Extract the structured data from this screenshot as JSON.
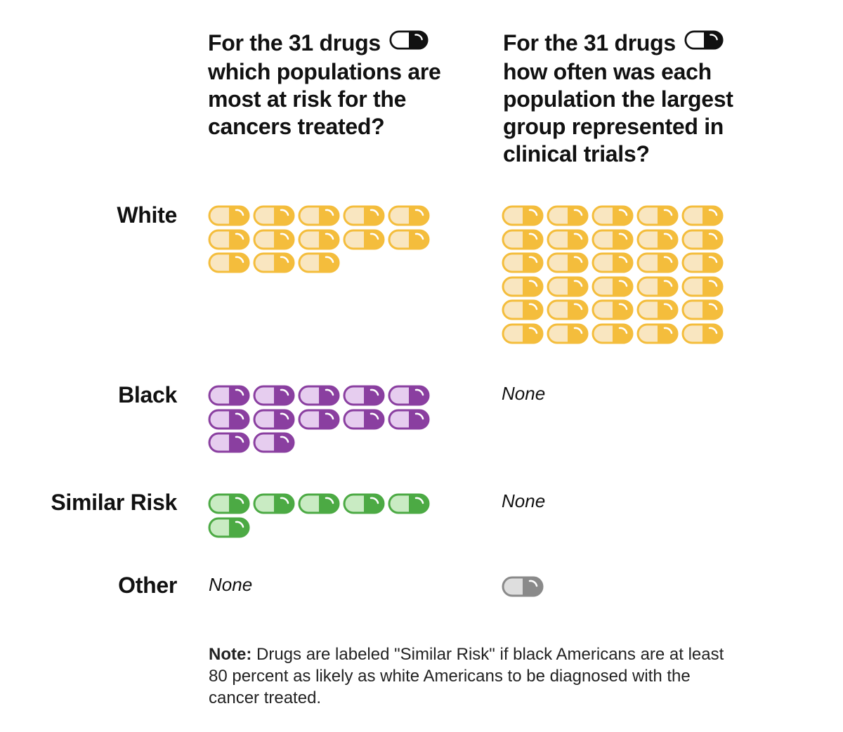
{
  "headings": {
    "left": [
      "For the 31 drugs",
      "which populations are",
      "most at risk for the",
      "cancers treated?"
    ],
    "right": [
      "For the 31 drugs",
      "how often was each",
      "population the largest",
      "group represented in",
      "clinical trials?"
    ]
  },
  "none_label": "None",
  "note": {
    "label": "Note:",
    "text": "Drugs are labeled \"Similar Risk\" if black Americans are at least 80 percent as likely as white Americans to be diagnosed with the cancer treated."
  },
  "colors": {
    "white": {
      "light": "#f9e6c0",
      "dark": "#f4bd3c",
      "stroke": "#f4bd3c"
    },
    "black": {
      "light": "#e6cdef",
      "dark": "#8a3fa0",
      "stroke": "#8a3fa0"
    },
    "similar_risk": {
      "light": "#c9ebc3",
      "dark": "#4caa44",
      "stroke": "#4caa44"
    },
    "other": {
      "light": "#dedede",
      "dark": "#8a8a8a",
      "stroke": "#8a8a8a"
    },
    "inline_icon": {
      "light": "#ffffff",
      "dark": "#111111",
      "stroke": "#111111"
    }
  },
  "chart_data": {
    "type": "table",
    "unit": "drugs (one pill icon per drug)",
    "total_drugs": 31,
    "categories": [
      "White",
      "Black",
      "Similar Risk",
      "Other"
    ],
    "series": [
      {
        "name": "Most at risk for the cancers treated",
        "values": [
          13,
          12,
          6,
          0
        ]
      },
      {
        "name": "Largest group represented in clinical trials",
        "values": [
          30,
          0,
          0,
          1
        ]
      }
    ]
  }
}
